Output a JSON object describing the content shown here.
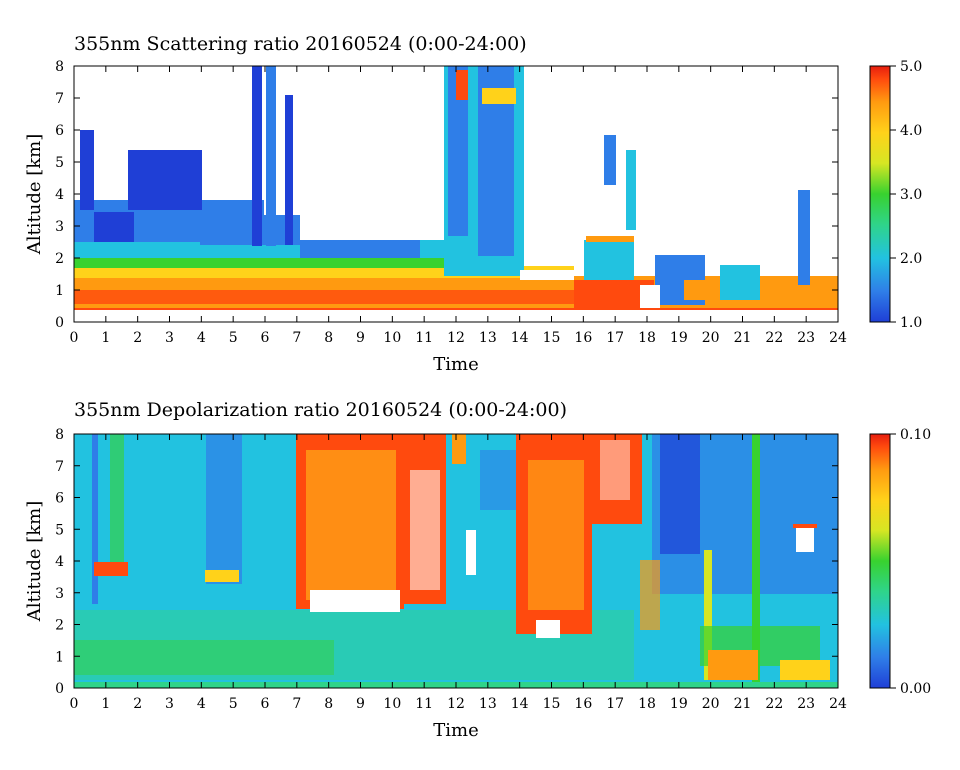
{
  "chart_data": [
    {
      "type": "heatmap",
      "title": "355nm Scattering ratio  20160524 (0:00-24:00)",
      "xlabel": "Time",
      "ylabel": "Altitude [km]",
      "xlim": [
        0,
        24
      ],
      "ylim": [
        0,
        8
      ],
      "xticks": [
        "0",
        "1",
        "2",
        "3",
        "4",
        "5",
        "6",
        "7",
        "8",
        "9",
        "10",
        "11",
        "12",
        "13",
        "14",
        "15",
        "16",
        "17",
        "18",
        "19",
        "20",
        "21",
        "22",
        "23",
        "24"
      ],
      "yticks": [
        "0",
        "1",
        "2",
        "3",
        "4",
        "5",
        "6",
        "7",
        "8"
      ],
      "colorbar": {
        "range": [
          1.0,
          5.0
        ],
        "ticks": [
          "5.0",
          "4.0",
          "3.0",
          "2.0",
          "1.0"
        ]
      },
      "grid": false
    },
    {
      "type": "heatmap",
      "title": "355nm Depolarization ratio  20160524 (0:00-24:00)",
      "xlabel": "Time",
      "ylabel": "Altitude [km]",
      "xlim": [
        0,
        24
      ],
      "ylim": [
        0,
        8
      ],
      "xticks": [
        "0",
        "1",
        "2",
        "3",
        "4",
        "5",
        "6",
        "7",
        "8",
        "9",
        "10",
        "11",
        "12",
        "13",
        "14",
        "15",
        "16",
        "17",
        "18",
        "19",
        "20",
        "21",
        "22",
        "23",
        "24"
      ],
      "yticks": [
        "0",
        "1",
        "2",
        "3",
        "4",
        "5",
        "6",
        "7",
        "8"
      ],
      "colorbar": {
        "range": [
          0.0,
          0.1
        ],
        "ticks": [
          "0.10",
          "0.00"
        ]
      },
      "grid": false
    }
  ],
  "colormap": [
    "#1f3fd6",
    "#2f7ee8",
    "#22c2e0",
    "#2fd48a",
    "#38d22f",
    "#d6e623",
    "#ffd21a",
    "#ff9a10",
    "#ff4a0e",
    "#e61e0e"
  ]
}
